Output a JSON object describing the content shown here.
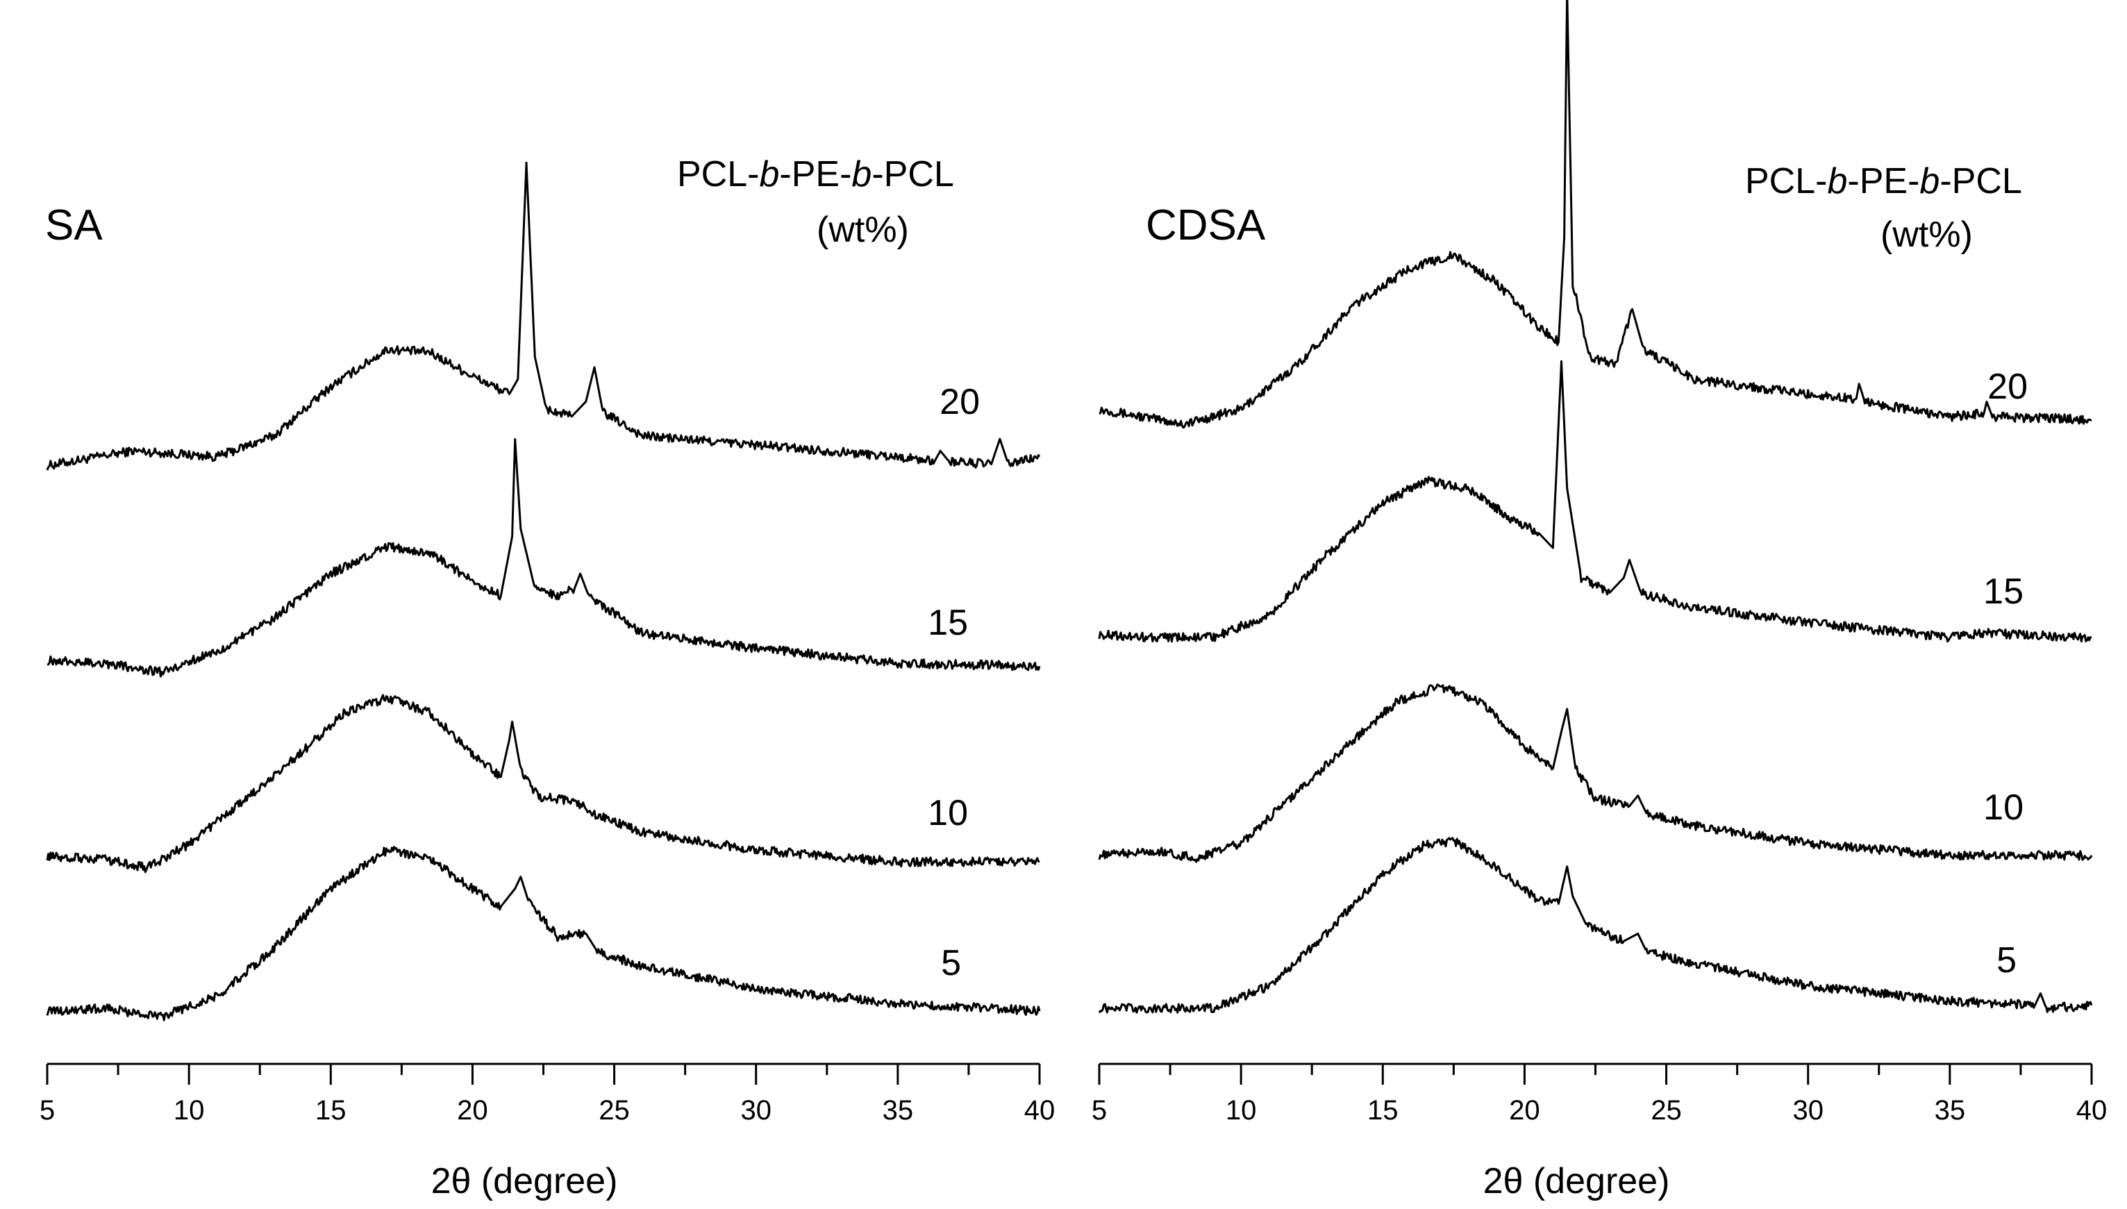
{
  "chart_data": [
    {
      "type": "line",
      "panel_label": "SA",
      "legend_title_parts": [
        "PCL-",
        "b",
        "-PE-",
        "b",
        "-PCL"
      ],
      "legend_unit": "(wt%)",
      "xlabel": "2θ (degree)",
      "ylabel": "",
      "xlim": [
        5,
        40
      ],
      "x_ticks": [
        5,
        10,
        15,
        20,
        25,
        30,
        35,
        40
      ],
      "y_axis_shown": false,
      "series": [
        {
          "name": "20",
          "values": [
            [
              5,
              0.02
            ],
            [
              8,
              0.12
            ],
            [
              11,
              0.08
            ],
            [
              13,
              0.22
            ],
            [
              15,
              0.55
            ],
            [
              17,
              0.8
            ],
            [
              18.5,
              0.78
            ],
            [
              20,
              0.62
            ],
            [
              21.3,
              0.5
            ],
            [
              21.6,
              0.6
            ],
            [
              21.9,
              2.05
            ],
            [
              22.2,
              0.75
            ],
            [
              22.6,
              0.4
            ],
            [
              23.5,
              0.35
            ],
            [
              24.0,
              0.45
            ],
            [
              24.3,
              0.68
            ],
            [
              24.6,
              0.38
            ],
            [
              26,
              0.22
            ],
            [
              30,
              0.16
            ],
            [
              35,
              0.08
            ],
            [
              36.3,
              0.05
            ],
            [
              36.5,
              0.12
            ],
            [
              36.8,
              0.05
            ],
            [
              38.3,
              0.03
            ],
            [
              38.6,
              0.2
            ],
            [
              38.9,
              0.03
            ],
            [
              40,
              0.08
            ]
          ]
        },
        {
          "name": "15",
          "values": [
            [
              5,
              0.02
            ],
            [
              7,
              0.0
            ],
            [
              9,
              -0.06
            ],
            [
              11,
              0.08
            ],
            [
              13,
              0.3
            ],
            [
              15,
              0.6
            ],
            [
              17,
              0.78
            ],
            [
              18.5,
              0.74
            ],
            [
              20,
              0.55
            ],
            [
              21.0,
              0.45
            ],
            [
              21.4,
              0.85
            ],
            [
              21.5,
              1.5
            ],
            [
              21.7,
              0.9
            ],
            [
              22.2,
              0.5
            ],
            [
              23,
              0.45
            ],
            [
              23.6,
              0.5
            ],
            [
              23.8,
              0.6
            ],
            [
              24.1,
              0.45
            ],
            [
              26,
              0.2
            ],
            [
              30,
              0.1
            ],
            [
              35,
              0.0
            ],
            [
              40,
              -0.02
            ]
          ]
        },
        {
          "name": "10",
          "values": [
            [
              5,
              0.02
            ],
            [
              7,
              0.0
            ],
            [
              8.5,
              -0.06
            ],
            [
              10,
              0.1
            ],
            [
              12,
              0.4
            ],
            [
              14,
              0.72
            ],
            [
              15.5,
              0.98
            ],
            [
              17,
              1.08
            ],
            [
              18.5,
              0.98
            ],
            [
              20,
              0.7
            ],
            [
              21.0,
              0.55
            ],
            [
              21.3,
              0.8
            ],
            [
              21.4,
              0.92
            ],
            [
              21.7,
              0.6
            ],
            [
              22.3,
              0.42
            ],
            [
              23.7,
              0.38
            ],
            [
              24.3,
              0.3
            ],
            [
              26,
              0.18
            ],
            [
              30,
              0.06
            ],
            [
              35,
              -0.02
            ],
            [
              40,
              -0.02
            ]
          ]
        },
        {
          "name": "5",
          "values": [
            [
              5,
              0.0
            ],
            [
              7,
              0.02
            ],
            [
              9,
              -0.04
            ],
            [
              11,
              0.1
            ],
            [
              13,
              0.42
            ],
            [
              15,
              0.82
            ],
            [
              17,
              1.08
            ],
            [
              18.5,
              1.02
            ],
            [
              20,
              0.82
            ],
            [
              21.0,
              0.7
            ],
            [
              21.5,
              0.82
            ],
            [
              21.7,
              0.9
            ],
            [
              22.0,
              0.72
            ],
            [
              23,
              0.5
            ],
            [
              24.0,
              0.52
            ],
            [
              24.4,
              0.4
            ],
            [
              26,
              0.3
            ],
            [
              30,
              0.15
            ],
            [
              35,
              0.05
            ],
            [
              40,
              0.0
            ]
          ]
        }
      ]
    },
    {
      "type": "line",
      "panel_label": "CDSA",
      "legend_title_parts": [
        "PCL-",
        "b",
        "-PE-",
        "b",
        "-PCL"
      ],
      "legend_unit": "(wt%)",
      "xlabel": "2θ (degree)",
      "ylabel": "",
      "xlim": [
        5,
        40
      ],
      "x_ticks": [
        5,
        10,
        15,
        20,
        25,
        30,
        35,
        40
      ],
      "y_axis_shown": false,
      "series": [
        {
          "name": "20",
          "values": [
            [
              5,
              0.05
            ],
            [
              8,
              -0.05
            ],
            [
              10,
              0.05
            ],
            [
              12,
              0.35
            ],
            [
              14,
              0.75
            ],
            [
              16,
              1.0
            ],
            [
              17.5,
              1.08
            ],
            [
              19,
              0.9
            ],
            [
              20.5,
              0.6
            ],
            [
              21.2,
              0.5
            ],
            [
              21.4,
              1.2
            ],
            [
              21.5,
              2.85
            ],
            [
              21.7,
              0.9
            ],
            [
              22.3,
              0.4
            ],
            [
              23.2,
              0.35
            ],
            [
              23.8,
              0.72
            ],
            [
              24.2,
              0.45
            ],
            [
              26,
              0.25
            ],
            [
              30,
              0.15
            ],
            [
              31.7,
              0.12
            ],
            [
              31.8,
              0.22
            ],
            [
              32.0,
              0.1
            ],
            [
              35,
              0.0
            ],
            [
              36.2,
              0.02
            ],
            [
              36.3,
              0.1
            ],
            [
              36.5,
              0.0
            ],
            [
              40,
              -0.02
            ]
          ]
        },
        {
          "name": "15",
          "values": [
            [
              5,
              0.02
            ],
            [
              7,
              0.0
            ],
            [
              9,
              0.0
            ],
            [
              11,
              0.15
            ],
            [
              13,
              0.55
            ],
            [
              15,
              0.9
            ],
            [
              16.5,
              1.05
            ],
            [
              18,
              1.0
            ],
            [
              19.5,
              0.8
            ],
            [
              20.5,
              0.7
            ],
            [
              21.0,
              0.6
            ],
            [
              21.3,
              1.85
            ],
            [
              21.5,
              1.0
            ],
            [
              22,
              0.4
            ],
            [
              23,
              0.3
            ],
            [
              23.5,
              0.4
            ],
            [
              23.7,
              0.52
            ],
            [
              24.1,
              0.3
            ],
            [
              26,
              0.2
            ],
            [
              30,
              0.1
            ],
            [
              35,
              0.0
            ],
            [
              36.2,
              0.03
            ],
            [
              40,
              0.0
            ]
          ]
        },
        {
          "name": "10",
          "values": [
            [
              5,
              0.02
            ],
            [
              7,
              0.05
            ],
            [
              8.5,
              0.0
            ],
            [
              10,
              0.1
            ],
            [
              12,
              0.45
            ],
            [
              14,
              0.8
            ],
            [
              15.5,
              1.05
            ],
            [
              17,
              1.15
            ],
            [
              18.5,
              1.05
            ],
            [
              20,
              0.75
            ],
            [
              21.0,
              0.6
            ],
            [
              21.3,
              0.85
            ],
            [
              21.5,
              1.0
            ],
            [
              21.8,
              0.6
            ],
            [
              22.5,
              0.4
            ],
            [
              23.7,
              0.35
            ],
            [
              24.0,
              0.42
            ],
            [
              24.3,
              0.3
            ],
            [
              26,
              0.22
            ],
            [
              30,
              0.1
            ],
            [
              35,
              0.02
            ],
            [
              40,
              0.02
            ]
          ]
        },
        {
          "name": "5",
          "values": [
            [
              5,
              0.0
            ],
            [
              7,
              0.0
            ],
            [
              9,
              0.0
            ],
            [
              11,
              0.15
            ],
            [
              13,
              0.5
            ],
            [
              15,
              0.9
            ],
            [
              16.5,
              1.1
            ],
            [
              17.5,
              1.12
            ],
            [
              19,
              0.95
            ],
            [
              20.5,
              0.72
            ],
            [
              21.2,
              0.7
            ],
            [
              21.5,
              0.95
            ],
            [
              21.7,
              0.75
            ],
            [
              22.2,
              0.55
            ],
            [
              23.5,
              0.45
            ],
            [
              24.0,
              0.5
            ],
            [
              24.3,
              0.38
            ],
            [
              26,
              0.3
            ],
            [
              30,
              0.15
            ],
            [
              35,
              0.05
            ],
            [
              38.0,
              0.02
            ],
            [
              38.2,
              0.1
            ],
            [
              38.4,
              0.0
            ],
            [
              40,
              0.02
            ]
          ]
        }
      ]
    }
  ]
}
